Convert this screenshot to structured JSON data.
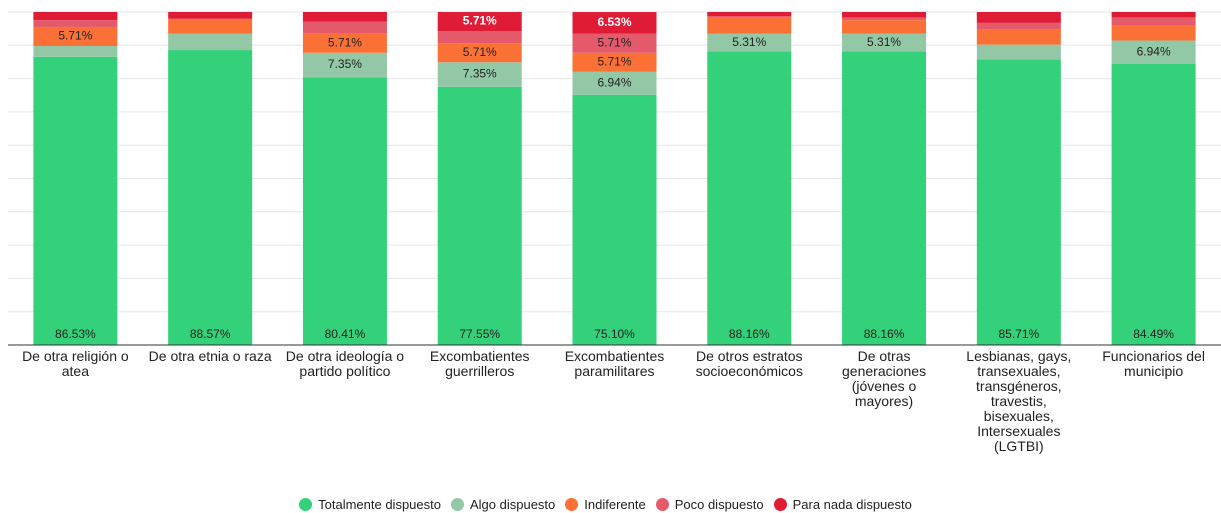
{
  "chart_data": {
    "type": "stacked_bar_100",
    "categories": [
      "De otra religión o atea",
      "De otra etnia o raza",
      "De otra ideología o partido político",
      "Excombatientes guerrilleros",
      "Excombatientes paramilitares",
      "De otros estratos socioeconómicos",
      "De otras generaciones (jóvenes o mayores)",
      "Lesbianas, gays, transexuales, transgéneros, travestis, bisexuales, Intersexuales (LGTBI)",
      "Funcionarios del municipio"
    ],
    "series": [
      {
        "name": "Totalmente dispuesto",
        "color": "#33d17a",
        "values": [
          86.53,
          88.57,
          80.41,
          77.55,
          75.1,
          88.16,
          88.16,
          85.71,
          84.49
        ],
        "value_labels": [
          "86.53%",
          "88.57%",
          "80.41%",
          "77.55%",
          "75.10%",
          "88.16%",
          "88.16%",
          "85.71%",
          "84.49%"
        ]
      },
      {
        "name": "Algo dispuesto",
        "color": "#93c8a6",
        "values": [
          3.27,
          4.9,
          7.35,
          7.35,
          6.94,
          5.31,
          5.31,
          4.49,
          6.94
        ],
        "value_labels": [
          null,
          null,
          "7.35%",
          "7.35%",
          "6.94%",
          "5.31%",
          "5.31%",
          null,
          "6.94%"
        ]
      },
      {
        "name": "Indiferente",
        "color": "#fb7035",
        "values": [
          5.71,
          4.49,
          5.71,
          5.71,
          5.71,
          4.9,
          4.08,
          4.49,
          4.49
        ],
        "value_labels": [
          "5.71%",
          null,
          "5.71%",
          "5.71%",
          "5.71%",
          null,
          null,
          null,
          null
        ]
      },
      {
        "name": "Poco dispuesto",
        "color": "#e55a6b",
        "values": [
          2.04,
          0,
          3.67,
          3.67,
          5.71,
          0.41,
          0.82,
          2.04,
          2.45
        ],
        "value_labels": [
          null,
          null,
          null,
          null,
          "5.71%",
          null,
          null,
          null,
          null
        ]
      },
      {
        "name": "Para nada dispuesto",
        "color": "#e01b35",
        "values": [
          2.45,
          2.04,
          2.86,
          5.71,
          6.53,
          1.22,
          1.63,
          3.27,
          1.63
        ],
        "value_labels": [
          null,
          null,
          null,
          "5.71%",
          "6.53%",
          null,
          null,
          null,
          null
        ]
      }
    ],
    "ylim": [
      0,
      100
    ],
    "yticks": [
      0,
      10,
      20,
      30,
      40,
      50,
      60,
      70,
      80,
      90,
      100
    ],
    "grid": true
  }
}
